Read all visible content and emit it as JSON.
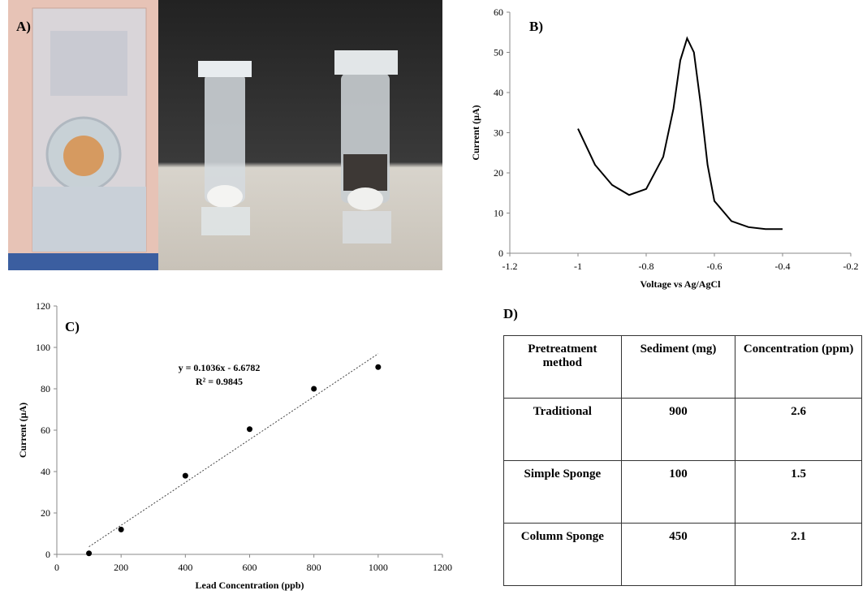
{
  "photo": {
    "label": "A)"
  },
  "chart_data": [
    {
      "type": "line",
      "label": "B)",
      "xlabel": "Voltage vs Ag/AgCl",
      "ylabel": "Current  (µA)",
      "x": [
        -1,
        -0.95,
        -0.9,
        -0.85,
        -0.8,
        -0.75,
        -0.72,
        -0.7,
        -0.68,
        -0.66,
        -0.64,
        -0.62,
        -0.6,
        -0.55,
        -0.5,
        -0.45,
        -0.4
      ],
      "values": [
        31,
        22,
        17,
        14.5,
        16,
        24,
        36,
        48,
        53.5,
        50,
        37,
        22,
        13,
        8,
        6.5,
        6,
        6
      ],
      "color": "#000000",
      "xlim": [
        -1.2,
        -0.2
      ],
      "xticks": [
        -1.2,
        -1,
        -0.8,
        -0.6,
        -0.4,
        -0.2
      ],
      "ylim": [
        0,
        60
      ],
      "yticks": [
        0,
        10,
        20,
        30,
        40,
        50,
        60
      ]
    },
    {
      "type": "scatter",
      "label": "C)",
      "xlabel": "Lead Concentration  (ppb)",
      "ylabel": "Current  (µA)",
      "x": [
        100,
        200,
        400,
        600,
        800,
        1000
      ],
      "values": [
        0.5,
        12,
        38,
        60.5,
        80,
        90.5
      ],
      "color": "#000000",
      "trendline": {
        "slope": 0.1036,
        "intercept": -6.6782
      },
      "annotations": [
        "y = 0.1036x - 6.6782",
        "R² = 0.9845"
      ],
      "xlim": [
        0,
        1200
      ],
      "xticks": [
        0,
        200,
        400,
        600,
        800,
        1000,
        1200
      ],
      "ylim": [
        0,
        120
      ],
      "yticks": [
        0,
        20,
        40,
        60,
        80,
        100,
        120
      ]
    }
  ],
  "table": {
    "label": "D)",
    "header": [
      "Pretreatment method",
      "Sediment (mg)",
      "Concentration (ppm)"
    ],
    "rows": [
      [
        "Traditional",
        900,
        2.6
      ],
      [
        "Simple Sponge",
        100,
        1.5
      ],
      [
        "Column Sponge",
        450,
        2.1
      ]
    ]
  }
}
